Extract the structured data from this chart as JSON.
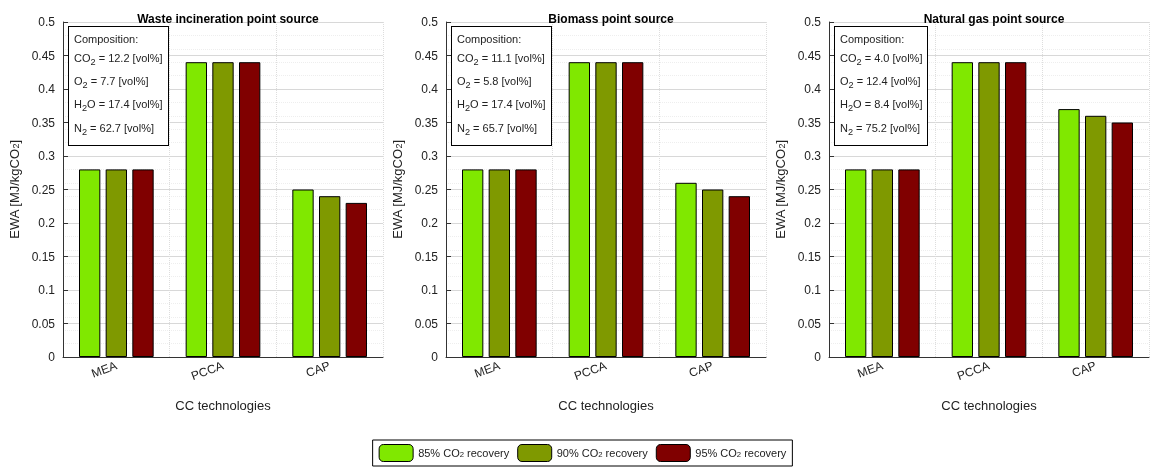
{
  "chart_data": [
    {
      "type": "bar",
      "title": "Waste incineration point source",
      "xlabel": "CC technologies",
      "ylabel": "EWA [MJ/kgCO$_{2}$]",
      "categories": [
        "MEA",
        "PCCA",
        "CAP"
      ],
      "series": [
        {
          "color": "#80e800",
          "values": [
            0.28,
            0.44,
            0.25
          ]
        },
        {
          "color": "#7f9900",
          "values": [
            0.28,
            0.44,
            0.24
          ]
        },
        {
          "color": "#800000",
          "values": [
            0.28,
            0.44,
            0.23
          ]
        }
      ],
      "ylim": [
        0,
        0.5
      ],
      "yticks": [
        0,
        0.05,
        0.1,
        0.15,
        0.2,
        0.25,
        0.3,
        0.35,
        0.4,
        0.45,
        0.5
      ],
      "grid": true,
      "annotations": [
        "Composition:",
        "CO$_{2}$ = 12.2 [vol%]",
        "O$_{2}$ = 7.7 [vol%]",
        "H$_{2}$O = 17.4 [vol%]",
        "N$_{2}$ = 62.7 [vol%]"
      ]
    },
    {
      "type": "bar",
      "title": "Biomass point source",
      "xlabel": "CC technologies",
      "ylabel": "EWA [MJ/kgCO$_{2}$]",
      "categories": [
        "MEA",
        "PCCA",
        "CAP"
      ],
      "series": [
        {
          "name": "85% CO$_{2}$ recovery",
          "color": "#80e800",
          "values": [
            0.28,
            0.44,
            0.26
          ]
        },
        {
          "name": "90% CO$_{2}$ recovery",
          "color": "#7f9900",
          "values": [
            0.28,
            0.44,
            0.25
          ]
        },
        {
          "name": "95% CO$_{2}$ recovery",
          "color": "#800000",
          "values": [
            0.28,
            0.44,
            0.24
          ]
        }
      ],
      "ylim": [
        0,
        0.5
      ],
      "yticks": [
        0,
        0.05,
        0.1,
        0.15,
        0.2,
        0.25,
        0.3,
        0.35,
        0.4,
        0.45,
        0.5
      ],
      "grid": true,
      "legend": "bottom",
      "annotations": [
        "Composition:",
        "CO$_{2}$ = 11.1 [vol%]",
        "O$_{2}$ = 5.8 [vol%]",
        "H$_{2}$O = 17.4 [vol%]",
        "N$_{2}$ = 65.7 [vol%]"
      ]
    },
    {
      "type": "bar",
      "title": "Natural gas point source",
      "xlabel": "CC technologies",
      "ylabel": "EWA [MJ/kgCO$_{2}$]",
      "categories": [
        "MEA",
        "PCCA",
        "CAP"
      ],
      "series": [
        {
          "color": "#80e800",
          "values": [
            0.28,
            0.44,
            0.37
          ]
        },
        {
          "color": "#7f9900",
          "values": [
            0.28,
            0.44,
            0.36
          ]
        },
        {
          "color": "#800000",
          "values": [
            0.28,
            0.44,
            0.35
          ]
        }
      ],
      "ylim": [
        0,
        0.5
      ],
      "yticks": [
        0,
        0.05,
        0.1,
        0.15,
        0.2,
        0.25,
        0.3,
        0.35,
        0.4,
        0.45,
        0.5
      ],
      "grid": true,
      "annotations": [
        "Composition:",
        "CO$_{2}$ = 4.0 [vol%]",
        "O$_{2}$ = 12.4 [vol%]",
        "H$_{2}$O = 8.4 [vol%]",
        "N$_{2}$ = 75.2 [vol%]"
      ]
    }
  ]
}
